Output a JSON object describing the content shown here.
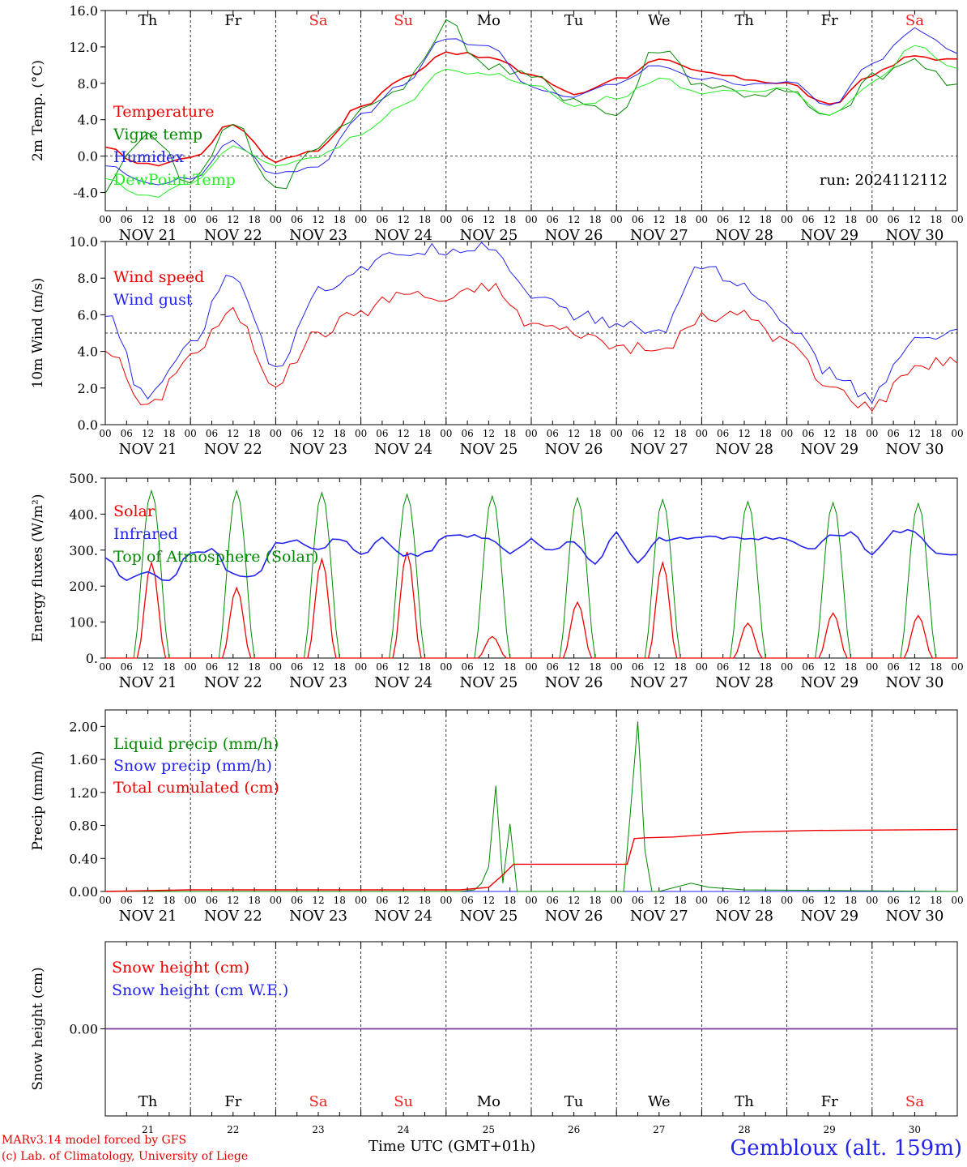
{
  "chart_data": [
    {
      "type": "line",
      "ylabel": "2m Temp. (°C)",
      "ylim": [
        -6,
        16
      ],
      "yticks": [
        "16.0",
        "12.0",
        "8.0",
        "4.0",
        "0.0",
        "-4.0"
      ],
      "ytick_values": [
        16,
        12,
        8,
        4,
        0,
        -4
      ],
      "refline": 0,
      "day_labels_top": [
        "Th",
        "Fr",
        "Sa",
        "Su",
        "Mo",
        "Tu",
        "We",
        "Th",
        "Fr",
        "Sa"
      ],
      "weekend_color": "#ee2222",
      "run_label": "run: 2024112112",
      "x_hours": [
        0,
        12,
        24,
        36,
        48,
        60,
        72,
        84,
        96,
        108,
        120,
        132,
        144,
        156,
        168,
        180,
        192,
        204,
        216,
        228,
        240
      ],
      "series": [
        {
          "name": "Temperature",
          "color": "#ee0000",
          "values": [
            0.8,
            -1.0,
            -0.2,
            3.5,
            -0.5,
            0.8,
            5.5,
            8.5,
            11.5,
            10.8,
            9.0,
            6.8,
            8.5,
            10.5,
            9.2,
            8.5,
            8.0,
            5.5,
            9.0,
            11.0,
            10.5
          ]
        },
        {
          "name": "Vigne temp",
          "color": "#008800",
          "values": [
            -3.5,
            3.0,
            -3.0,
            4.0,
            -4.0,
            1.5,
            5.0,
            7.5,
            14.5,
            10.0,
            8.5,
            6.5,
            4.5,
            12.0,
            8.0,
            7.0,
            7.0,
            4.0,
            8.5,
            10.5,
            7.2
          ]
        },
        {
          "name": "Humidex",
          "color": "#2222ee",
          "values": [
            -1.0,
            -3.0,
            -2.5,
            1.5,
            -2.0,
            -1.0,
            4.5,
            8.0,
            13.0,
            12.0,
            7.5,
            6.5,
            8.0,
            10.0,
            8.5,
            8.0,
            8.2,
            5.5,
            10.0,
            14.0,
            11.5
          ]
        },
        {
          "name": "DewPoint Temp",
          "color": "#22ee22",
          "values": [
            -2.5,
            -4.5,
            -3.0,
            1.0,
            -1.0,
            0.0,
            2.5,
            5.5,
            9.5,
            9.0,
            8.0,
            5.5,
            6.5,
            8.5,
            7.0,
            7.0,
            7.5,
            4.5,
            8.0,
            12.0,
            9.8
          ]
        }
      ]
    },
    {
      "type": "line",
      "ylabel": "10m Wind (m/s)",
      "ylim": [
        0,
        10
      ],
      "yticks": [
        "10.0",
        "8.0",
        "6.0",
        "4.0",
        "2.0",
        "0.0"
      ],
      "ytick_values": [
        10,
        8,
        6,
        4,
        2,
        0
      ],
      "refline": 5,
      "x_hours": [
        0,
        12,
        24,
        36,
        48,
        60,
        72,
        84,
        96,
        108,
        120,
        132,
        144,
        156,
        168,
        180,
        192,
        204,
        216,
        228,
        240
      ],
      "series": [
        {
          "name": "Wind speed",
          "color": "#ee0000",
          "values": [
            4.2,
            0.9,
            3.8,
            6.1,
            2.3,
            5.0,
            6.2,
            7.2,
            6.8,
            7.6,
            5.5,
            5.1,
            4.3,
            4.0,
            5.8,
            6.0,
            4.5,
            2.0,
            1.0,
            3.2,
            3.6
          ]
        },
        {
          "name": "Wind gust",
          "color": "#2222ee",
          "values": [
            5.9,
            1.4,
            4.5,
            8.3,
            3.2,
            7.3,
            8.5,
            9.4,
            9.6,
            9.8,
            7.2,
            6.0,
            5.5,
            5.0,
            8.8,
            7.5,
            5.5,
            2.8,
            1.5,
            4.5,
            5.0
          ]
        }
      ]
    },
    {
      "type": "line",
      "ylabel": "Energy fluxes (W/m²)",
      "ylim": [
        0,
        500
      ],
      "yticks": [
        "500.",
        "400.",
        "300.",
        "200.",
        "100.",
        "0."
      ],
      "ytick_values": [
        500,
        400,
        300,
        200,
        100,
        0
      ],
      "solar_peaks": [
        265,
        195,
        275,
        295,
        60,
        155,
        265,
        97,
        125,
        118
      ],
      "toa_peaks": [
        465,
        465,
        460,
        455,
        450,
        445,
        440,
        435,
        432,
        430
      ],
      "infrared_x": [
        0,
        6,
        12,
        18,
        24,
        30,
        36,
        42,
        48,
        54,
        60,
        66,
        72,
        78,
        84,
        90,
        96,
        102,
        108,
        114,
        120,
        126,
        132,
        138,
        144,
        150,
        156,
        162,
        168,
        174,
        180,
        186,
        192,
        198,
        204,
        210,
        216,
        222,
        228,
        234,
        240
      ],
      "infrared_values": [
        280,
        215,
        240,
        215,
        295,
        300,
        230,
        225,
        315,
        325,
        300,
        335,
        290,
        330,
        285,
        290,
        345,
        340,
        330,
        295,
        330,
        295,
        325,
        265,
        345,
        270,
        330,
        330,
        335,
        335,
        335,
        330,
        335,
        300,
        340,
        345,
        290,
        350,
        355,
        290,
        285
      ],
      "series": [
        {
          "name": "Solar",
          "color": "#ee0000"
        },
        {
          "name": "Infrared",
          "color": "#2222ee"
        },
        {
          "name": "Top of Atmosphere (Solar)",
          "color": "#008800"
        }
      ]
    },
    {
      "type": "line",
      "ylabel": "Precip (mm/h)",
      "ylim": [
        0,
        2.2
      ],
      "yticks": [
        "2.00",
        "1.60",
        "1.20",
        "0.80",
        "0.40",
        "0.00"
      ],
      "ytick_values": [
        2.0,
        1.6,
        1.2,
        0.8,
        0.4,
        0.0
      ],
      "series": [
        {
          "name": "Liquid precip (mm/h)",
          "color": "#008800",
          "x": [
            0,
            100,
            104,
            106,
            108,
            110,
            112,
            114,
            116,
            118,
            120,
            146,
            148,
            150,
            152,
            154,
            156,
            165,
            170,
            180,
            240
          ],
          "values": [
            0,
            0,
            0.02,
            0.1,
            0.3,
            1.28,
            0.1,
            0.82,
            0,
            0,
            0,
            0,
            1.0,
            2.06,
            0.5,
            0,
            0,
            0.1,
            0.05,
            0.02,
            0
          ]
        },
        {
          "name": "Snow precip (mm/h)",
          "color": "#2222ee",
          "x": [
            0,
            240
          ],
          "values": [
            0,
            0
          ]
        },
        {
          "name": "Total cumulated (cm)",
          "color": "#ee0000",
          "x": [
            0,
            24,
            100,
            108,
            112,
            115,
            147,
            149,
            152,
            160,
            180,
            200,
            240
          ],
          "values": [
            0,
            0.02,
            0.02,
            0.05,
            0.2,
            0.33,
            0.33,
            0.64,
            0.65,
            0.66,
            0.72,
            0.74,
            0.75
          ]
        }
      ]
    },
    {
      "type": "line",
      "ylabel": "Snow height (cm)",
      "yticks": [
        "0.00"
      ],
      "ytick_values": [
        0
      ],
      "day_labels_bottom": [
        "Th",
        "Fr",
        "Sa",
        "Su",
        "Mo",
        "Tu",
        "We",
        "Th",
        "Fr",
        "Sa"
      ],
      "day_numbers": [
        "21",
        "22",
        "23",
        "24",
        "25",
        "26",
        "27",
        "28",
        "29",
        "30"
      ],
      "series": [
        {
          "name": "Snow height (cm)",
          "color": "#ee0000",
          "x": [
            0,
            240
          ],
          "values": [
            0,
            0
          ]
        },
        {
          "name": "Snow height (cm W.E.)",
          "color": "#2222ee",
          "x": [
            0,
            240
          ],
          "values": [
            0,
            0
          ]
        }
      ]
    }
  ],
  "xaxis": {
    "hour_ticks": [
      "00",
      "06",
      "12",
      "18"
    ],
    "date_labels": [
      "NOV 21",
      "NOV 22",
      "NOV 23",
      "NOV 24",
      "NOV 25",
      "NOV 26",
      "NOV 27",
      "NOV 28",
      "NOV 29",
      "NOV 30"
    ],
    "weekend_flags": [
      false,
      false,
      true,
      true,
      false,
      false,
      false,
      false,
      false,
      true
    ]
  },
  "footer": {
    "model": "MARv3.14 model forced by GFS",
    "lab": "(c) Lab. of Climatology, University of Liege",
    "xlabel": "Time UTC (GMT+01h)",
    "station": "Gembloux (alt. 159m)"
  }
}
